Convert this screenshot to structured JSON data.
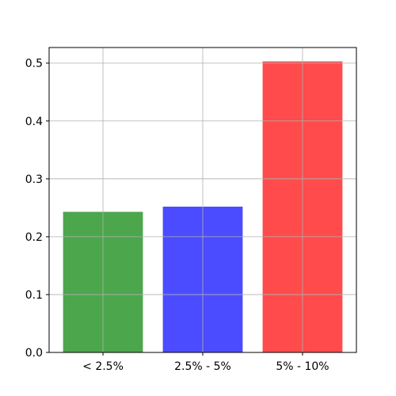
{
  "chart_data": {
    "type": "bar",
    "categories": [
      "< 2.5%",
      "2.5% - 5%",
      "5% - 10%"
    ],
    "values": [
      0.243,
      0.252,
      0.503
    ],
    "colors": [
      "#4ca64c",
      "#4b4bff",
      "#ff4b4b"
    ],
    "title": "",
    "xlabel": "",
    "ylabel": "",
    "ylim": [
      0,
      0.527
    ],
    "yticks": [
      0.0,
      0.1,
      0.2,
      0.3,
      0.4,
      0.5
    ],
    "ytick_labels": [
      "0.0",
      "0.1",
      "0.2",
      "0.3",
      "0.4",
      "0.5"
    ],
    "grid": true,
    "legend": false
  }
}
